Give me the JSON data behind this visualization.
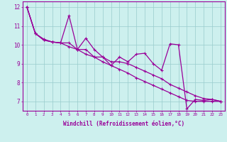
{
  "xlabel": "Windchill (Refroidissement éolien,°C)",
  "background_color": "#cdf0ee",
  "line_color": "#990099",
  "grid_color": "#99cccc",
  "xlim": [
    -0.5,
    23.5
  ],
  "ylim": [
    6.5,
    12.3
  ],
  "xticks": [
    0,
    1,
    2,
    3,
    4,
    5,
    6,
    7,
    8,
    9,
    10,
    11,
    12,
    13,
    14,
    15,
    16,
    17,
    18,
    19,
    20,
    21,
    22,
    23
  ],
  "yticks": [
    7,
    8,
    9,
    10,
    11,
    12
  ],
  "x": [
    0,
    1,
    2,
    3,
    4,
    5,
    6,
    7,
    8,
    9,
    10,
    11,
    12,
    13,
    14,
    15,
    16,
    17,
    18,
    19,
    20,
    21,
    22,
    23
  ],
  "y_jagged": [
    12.0,
    10.6,
    10.3,
    10.15,
    10.1,
    11.55,
    9.75,
    10.35,
    9.75,
    9.35,
    8.9,
    9.35,
    9.1,
    9.5,
    9.55,
    9.0,
    8.65,
    10.05,
    10.0,
    6.6,
    7.1,
    7.05,
    7.1,
    7.0
  ],
  "y_upper_trend": [
    12.0,
    10.6,
    10.25,
    10.15,
    10.1,
    10.1,
    9.75,
    9.75,
    9.35,
    9.35,
    9.1,
    9.1,
    9.0,
    8.8,
    8.6,
    8.4,
    8.2,
    7.9,
    7.7,
    7.5,
    7.3,
    7.15,
    7.1,
    7.0
  ],
  "y_lower_trend": [
    12.0,
    10.6,
    10.25,
    10.15,
    10.1,
    9.9,
    9.75,
    9.5,
    9.35,
    9.1,
    8.9,
    8.7,
    8.5,
    8.25,
    8.05,
    7.85,
    7.65,
    7.45,
    7.25,
    7.05,
    7.0,
    7.0,
    7.0,
    7.0
  ],
  "markersize": 3.5,
  "linewidth": 0.9
}
